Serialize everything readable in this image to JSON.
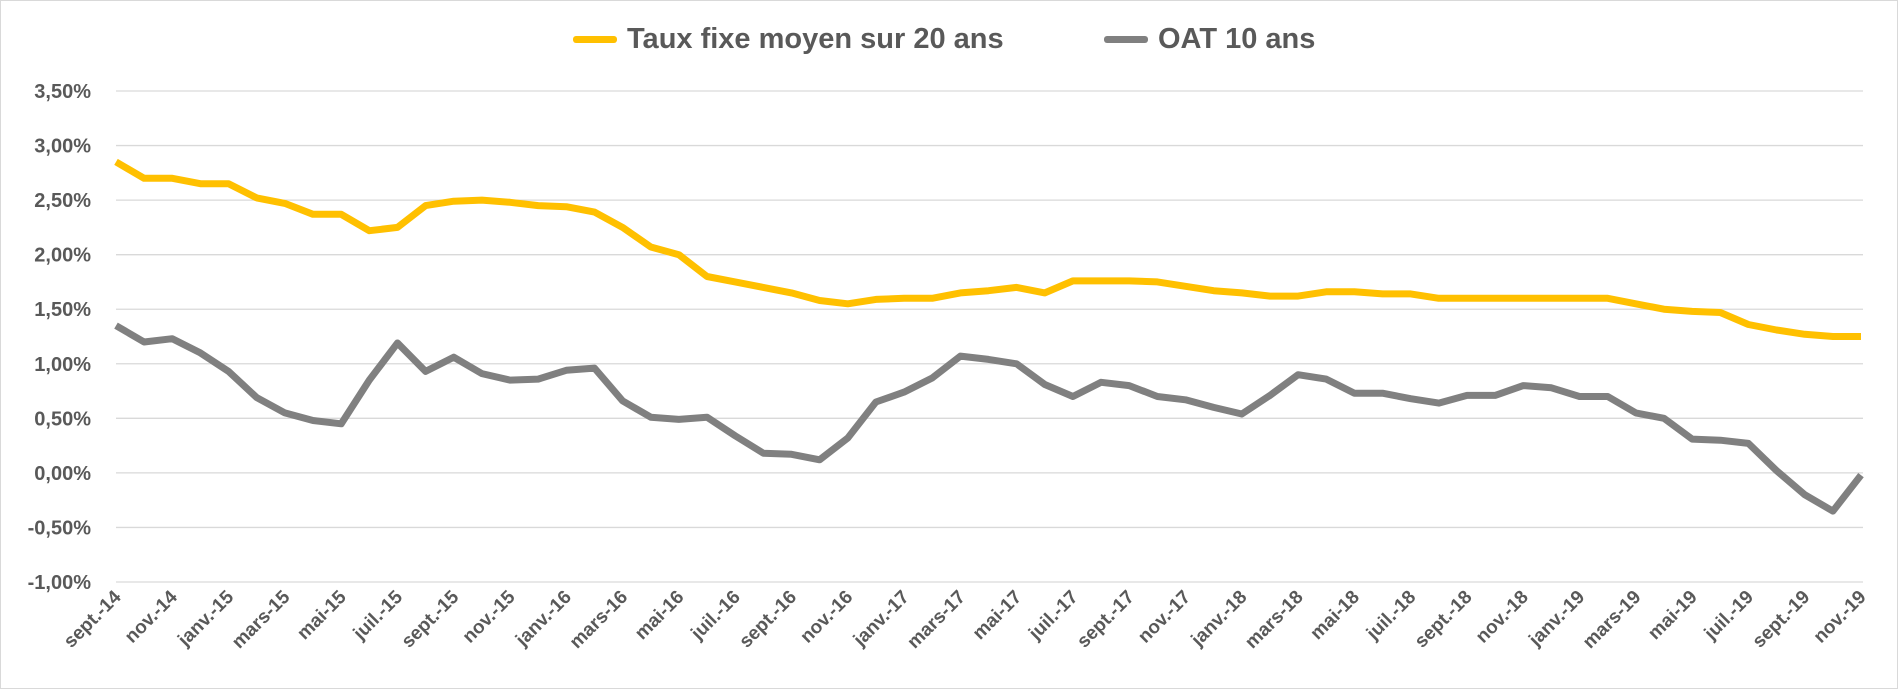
{
  "chart_data": {
    "type": "line",
    "title": "",
    "xlabel": "",
    "ylabel": "",
    "ylim": [
      -1.0,
      3.5
    ],
    "y_ticks": [
      "-1,00%",
      "-0,50%",
      "0,00%",
      "0,50%",
      "1,00%",
      "1,50%",
      "2,00%",
      "2,50%",
      "3,00%",
      "3,50%"
    ],
    "y_tick_values": [
      -1.0,
      -0.5,
      0,
      0.5,
      1.0,
      1.5,
      2.0,
      2.5,
      3.0,
      3.5
    ],
    "x_tick_labels": [
      "sept.-14",
      "nov.-14",
      "janv.-15",
      "mars-15",
      "mai-15",
      "juil.-15",
      "sept.-15",
      "nov.-15",
      "janv.-16",
      "mars-16",
      "mai-16",
      "juil.-16",
      "sept.-16",
      "nov.-16",
      "janv.-17",
      "mars-17",
      "mai-17",
      "juil.-17",
      "sept.-17",
      "nov.-17",
      "janv.-18",
      "mars-18",
      "mai-18",
      "juil.-18",
      "sept.-18",
      "nov.-18",
      "janv.-19",
      "mars-19",
      "mai-19",
      "juil.-19",
      "sept.-19",
      "nov.-19"
    ],
    "x_range": [
      "sept.-14",
      "nov.-19"
    ],
    "grid": true,
    "legend": "top",
    "series": [
      {
        "name": "Taux fixe moyen sur 20 ans",
        "color": "#FFC000",
        "values": [
          2.85,
          2.7,
          2.7,
          2.65,
          2.65,
          2.52,
          2.47,
          2.37,
          2.37,
          2.22,
          2.25,
          2.45,
          2.49,
          2.5,
          2.48,
          2.45,
          2.44,
          2.39,
          2.25,
          2.07,
          2.0,
          1.8,
          1.75,
          1.7,
          1.65,
          1.58,
          1.55,
          1.59,
          1.6,
          1.6,
          1.65,
          1.67,
          1.7,
          1.65,
          1.76,
          1.76,
          1.76,
          1.75,
          1.71,
          1.67,
          1.65,
          1.62,
          1.62,
          1.66,
          1.66,
          1.64,
          1.64,
          1.6,
          1.6,
          1.6,
          1.6,
          1.6,
          1.6,
          1.6,
          1.55,
          1.5,
          1.48,
          1.47,
          1.36,
          1.31,
          1.27,
          1.25,
          1.25
        ]
      },
      {
        "name": "OAT 10 ans",
        "color": "#808080",
        "values": [
          1.35,
          1.2,
          1.23,
          1.1,
          0.93,
          0.69,
          0.55,
          0.48,
          0.45,
          0.85,
          1.19,
          0.93,
          1.06,
          0.91,
          0.85,
          0.86,
          0.94,
          0.96,
          0.66,
          0.51,
          0.49,
          0.51,
          0.34,
          0.18,
          0.17,
          0.12,
          0.32,
          0.65,
          0.74,
          0.87,
          1.07,
          1.04,
          1.0,
          0.81,
          0.7,
          0.83,
          0.8,
          0.7,
          0.67,
          0.6,
          0.54,
          0.71,
          0.9,
          0.86,
          0.73,
          0.73,
          0.68,
          0.64,
          0.71,
          0.71,
          0.8,
          0.78,
          0.7,
          0.7,
          0.55,
          0.5,
          0.31,
          0.3,
          0.27,
          0.02,
          -0.2,
          -0.35,
          -0.02
        ]
      }
    ]
  }
}
